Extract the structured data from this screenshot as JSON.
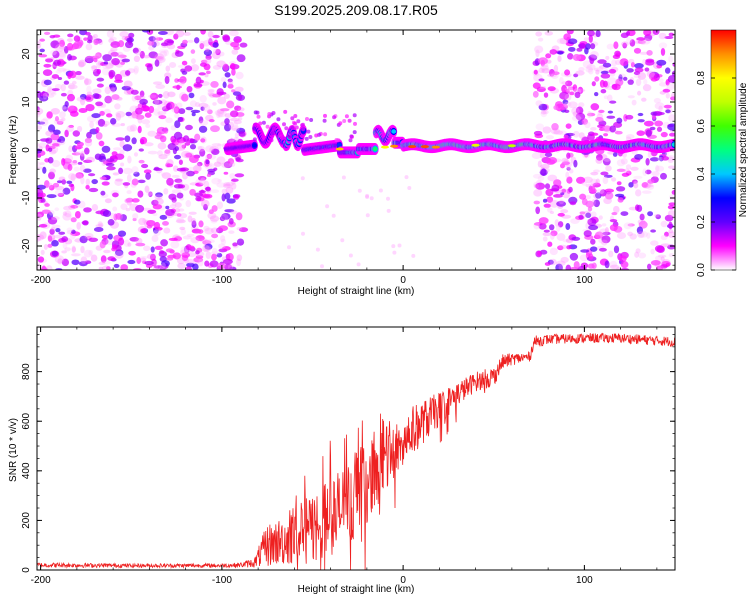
{
  "title": "S199.2025.209.08.17.R05",
  "chart_data": [
    {
      "type": "heatmap",
      "xlabel": "Height of straight line (km)",
      "ylabel": "Frequency (Hz)",
      "xlim": [
        -202,
        150
      ],
      "ylim": [
        -25,
        25
      ],
      "xticks": [
        -200,
        -100,
        0,
        100
      ],
      "yticks": [
        -20,
        -10,
        0,
        10,
        20
      ],
      "colorbar": {
        "label": "Normalized spectral amplitude",
        "range": [
          0,
          1
        ],
        "ticks": [
          "0.0",
          "0.2",
          "0.4",
          "0.6",
          "0.8"
        ],
        "tick_values": [
          0,
          0.2,
          0.4,
          0.6,
          0.8
        ],
        "colors": [
          "#ffffff",
          "#ff00ff",
          "#6000ff",
          "#0000ff",
          "#00c8ff",
          "#00ff80",
          "#40ff00",
          "#c0ff00",
          "#ffff00",
          "#ff9000",
          "#ff0000"
        ]
      },
      "regions": [
        {
          "x": [
            -202,
            -90
          ],
          "description": "scattered noise",
          "freq_range": [
            -25,
            25
          ]
        },
        {
          "x": [
            -95,
            72
          ],
          "description": "signal ridge",
          "freq_center": [
            0,
            5,
            0,
            2,
            1
          ]
        },
        {
          "x": [
            72,
            150
          ],
          "description": "noise plus ridge near 1 Hz",
          "freq_range": [
            -25,
            25
          ]
        }
      ]
    },
    {
      "type": "line",
      "xlabel": "Height of straight line (km)",
      "ylabel": "SNR (10 * v/v)",
      "xlim": [
        -202,
        150
      ],
      "ylim": [
        0,
        980
      ],
      "xticks": [
        -200,
        -100,
        0,
        100
      ],
      "yticks": [
        0,
        200,
        400,
        600,
        800
      ],
      "color": "#ee2020",
      "envelope": {
        "x": [
          -202,
          -150,
          -100,
          -90,
          -82,
          -75,
          -65,
          -55,
          -45,
          -35,
          -25,
          -15,
          -5,
          0,
          10,
          20,
          30,
          40,
          50,
          55,
          60,
          70,
          72,
          80,
          100,
          120,
          140,
          150
        ],
        "mean": [
          20,
          18,
          18,
          20,
          30,
          100,
          120,
          150,
          190,
          240,
          300,
          400,
          480,
          530,
          590,
          650,
          710,
          760,
          780,
          840,
          850,
          860,
          920,
          930,
          935,
          935,
          925,
          920
        ],
        "amp": [
          10,
          8,
          8,
          10,
          20,
          90,
          100,
          130,
          160,
          170,
          170,
          150,
          120,
          110,
          90,
          70,
          50,
          40,
          40,
          30,
          25,
          20,
          25,
          20,
          20,
          20,
          20,
          20
        ]
      }
    }
  ]
}
